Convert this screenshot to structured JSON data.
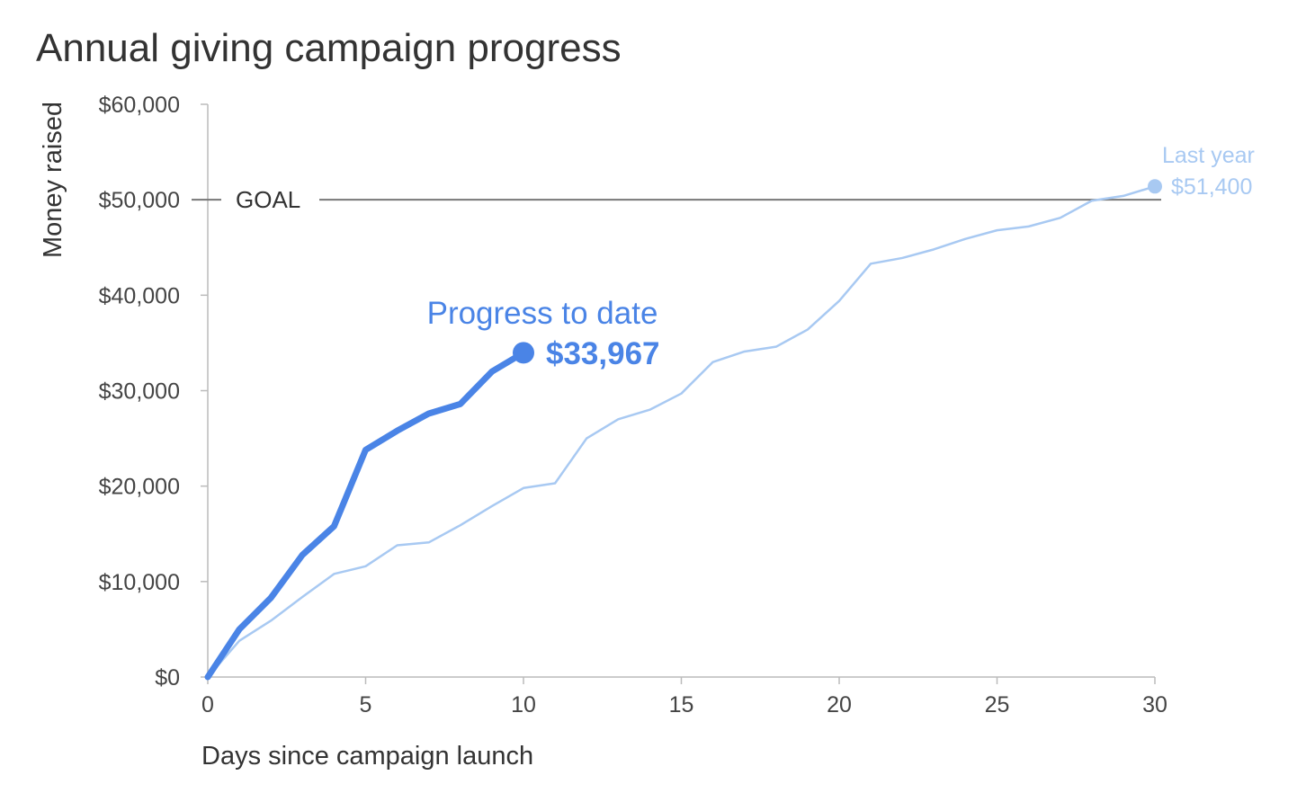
{
  "chart_data": {
    "type": "line",
    "title": "Annual giving campaign progress",
    "xlabel": "Days since campaign launch",
    "ylabel": "Money raised",
    "xlim": [
      0,
      30
    ],
    "ylim": [
      0,
      60000
    ],
    "x_ticks": [
      0,
      5,
      10,
      15,
      20,
      25,
      30
    ],
    "y_ticks": [
      0,
      10000,
      20000,
      30000,
      40000,
      50000,
      60000
    ],
    "x_tick_labels": [
      "0",
      "5",
      "10",
      "15",
      "20",
      "25",
      "30"
    ],
    "y_tick_labels": [
      "$0",
      "$10,000",
      "$20,000",
      "$30,000",
      "$40,000",
      "$50,000",
      "$60,000"
    ],
    "grid": false,
    "goal": {
      "label": "GOAL",
      "value": 50000,
      "color": "#777777"
    },
    "series": [
      {
        "name": "Last year",
        "color": "#a8c9f2",
        "end_label": "$51,400",
        "x": [
          0,
          1,
          2,
          3,
          4,
          5,
          6,
          7,
          8,
          9,
          10,
          11,
          12,
          13,
          14,
          15,
          16,
          17,
          18,
          19,
          20,
          21,
          22,
          23,
          24,
          25,
          26,
          27,
          28,
          29,
          30
        ],
        "y": [
          0,
          3800,
          5900,
          8400,
          10800,
          11600,
          13800,
          14100,
          15900,
          17900,
          19800,
          20300,
          25000,
          27000,
          28000,
          29700,
          33000,
          34100,
          34600,
          36400,
          39400,
          43300,
          43900,
          44800,
          45900,
          46800,
          47200,
          48100,
          49900,
          50400,
          51400
        ]
      },
      {
        "name": "Progress to date",
        "color": "#4a84e6",
        "end_label": "$33,967",
        "x": [
          0,
          1,
          2,
          3,
          4,
          5,
          6,
          7,
          8,
          9,
          10
        ],
        "y": [
          0,
          5000,
          8300,
          12800,
          15800,
          23800,
          25800,
          27600,
          28600,
          32000,
          33967
        ]
      }
    ]
  }
}
